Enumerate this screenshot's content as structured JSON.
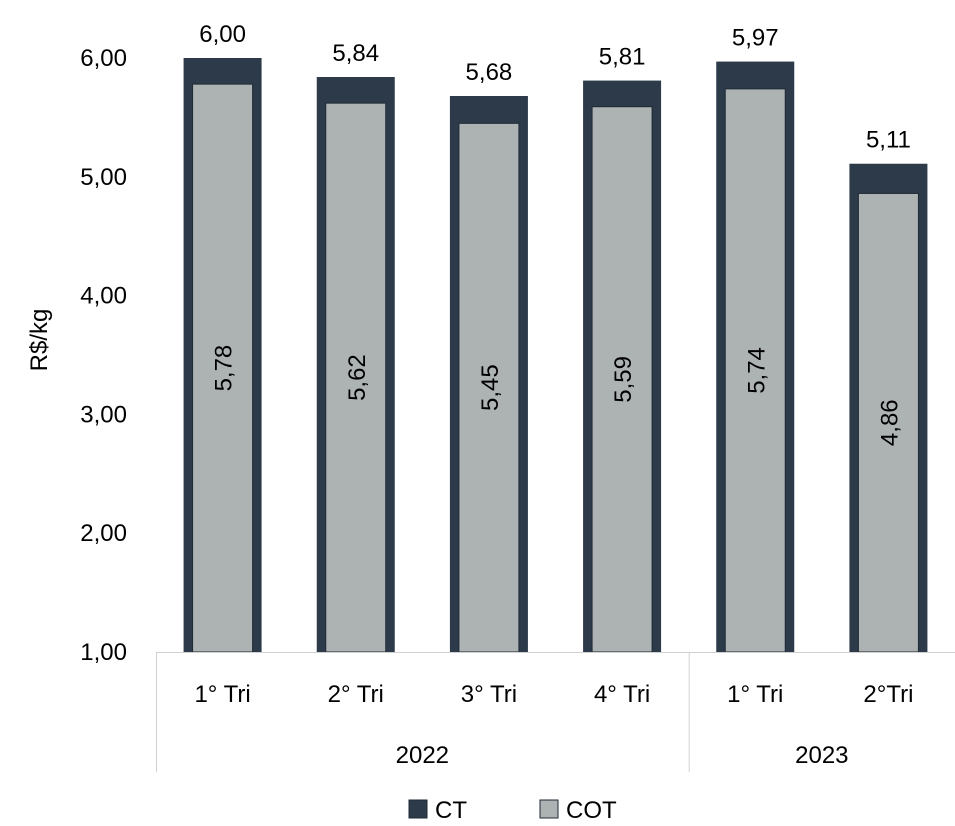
{
  "chart_data": {
    "type": "bar",
    "ylabel": "R$/kg",
    "ylim": [
      1.0,
      6.0
    ],
    "yticks": [
      1.0,
      2.0,
      3.0,
      4.0,
      5.0,
      6.0
    ],
    "ytick_labels": [
      "1,00",
      "2,00",
      "3,00",
      "4,00",
      "5,00",
      "6,00"
    ],
    "categories": [
      "1° Tri",
      "2° Tri",
      "3° Tri",
      "4° Tri",
      "1° Tri",
      "2°Tri"
    ],
    "groups": [
      {
        "label": "2022",
        "count": 4
      },
      {
        "label": "2023",
        "count": 2
      }
    ],
    "series": [
      {
        "name": "CT",
        "color": "#2d3a4a",
        "values": [
          6.0,
          5.84,
          5.68,
          5.81,
          5.97,
          5.11
        ],
        "labels": [
          "6,00",
          "5,84",
          "5,68",
          "5,81",
          "5,97",
          "5,11"
        ]
      },
      {
        "name": "COT",
        "color": "#adb3b3",
        "values": [
          5.78,
          5.62,
          5.45,
          5.59,
          5.74,
          4.86
        ],
        "labels": [
          "5,78",
          "5,62",
          "5,45",
          "5,59",
          "5,74",
          "4,86"
        ]
      }
    ],
    "legend_position": "bottom",
    "grid": false
  }
}
